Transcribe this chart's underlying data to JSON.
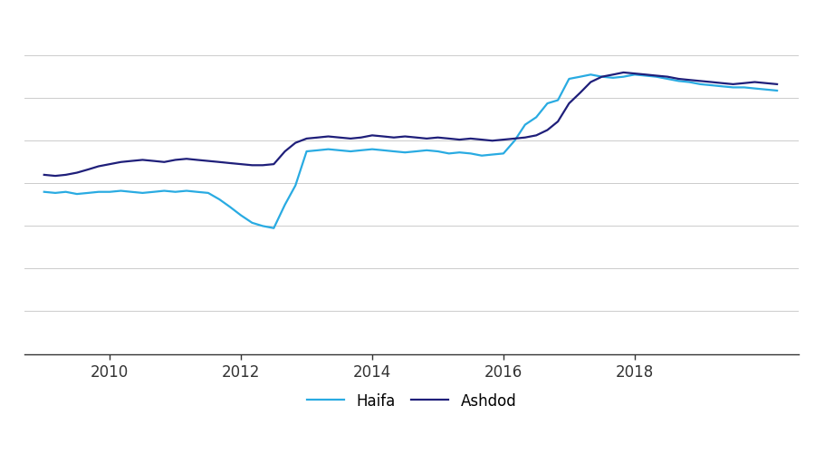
{
  "background_color": "#ffffff",
  "haifa_color": "#29ABE2",
  "ashdod_color": "#1F1F7A",
  "legend_labels": [
    "Haifa",
    "Ashdod"
  ],
  "xlim": [
    2008.7,
    2020.5
  ],
  "ylim": [
    1.2,
    4.4
  ],
  "xticks": [
    2010,
    2012,
    2014,
    2016,
    2018
  ],
  "grid_lines_y": [
    1.6,
    2.0,
    2.4,
    2.8,
    3.2,
    3.6,
    4.0
  ],
  "haifa_x": [
    2009.0,
    2009.17,
    2009.33,
    2009.5,
    2009.67,
    2009.83,
    2010.0,
    2010.17,
    2010.33,
    2010.5,
    2010.67,
    2010.83,
    2011.0,
    2011.17,
    2011.33,
    2011.5,
    2011.67,
    2011.83,
    2012.0,
    2012.17,
    2012.33,
    2012.5,
    2012.67,
    2012.83,
    2013.0,
    2013.17,
    2013.33,
    2013.5,
    2013.67,
    2013.83,
    2014.0,
    2014.17,
    2014.33,
    2014.5,
    2014.67,
    2014.83,
    2015.0,
    2015.17,
    2015.33,
    2015.5,
    2015.67,
    2015.83,
    2016.0,
    2016.17,
    2016.33,
    2016.5,
    2016.67,
    2016.83,
    2017.0,
    2017.17,
    2017.33,
    2017.5,
    2017.67,
    2017.83,
    2018.0,
    2018.17,
    2018.33,
    2018.5,
    2018.67,
    2018.83,
    2019.0,
    2019.17,
    2019.33,
    2019.5,
    2019.67,
    2019.83,
    2020.0,
    2020.17
  ],
  "haifa_y": [
    2.72,
    2.71,
    2.72,
    2.7,
    2.71,
    2.72,
    2.72,
    2.73,
    2.72,
    2.71,
    2.72,
    2.73,
    2.72,
    2.73,
    2.72,
    2.71,
    2.65,
    2.58,
    2.5,
    2.43,
    2.4,
    2.38,
    2.6,
    2.78,
    3.1,
    3.11,
    3.12,
    3.11,
    3.1,
    3.11,
    3.12,
    3.11,
    3.1,
    3.09,
    3.1,
    3.11,
    3.1,
    3.08,
    3.09,
    3.08,
    3.06,
    3.07,
    3.08,
    3.2,
    3.35,
    3.42,
    3.55,
    3.58,
    3.78,
    3.8,
    3.82,
    3.8,
    3.79,
    3.8,
    3.82,
    3.81,
    3.8,
    3.78,
    3.76,
    3.75,
    3.73,
    3.72,
    3.71,
    3.7,
    3.7,
    3.69,
    3.68,
    3.67
  ],
  "ashdod_x": [
    2009.0,
    2009.17,
    2009.33,
    2009.5,
    2009.67,
    2009.83,
    2010.0,
    2010.17,
    2010.33,
    2010.5,
    2010.67,
    2010.83,
    2011.0,
    2011.17,
    2011.33,
    2011.5,
    2011.67,
    2011.83,
    2012.0,
    2012.17,
    2012.33,
    2012.5,
    2012.67,
    2012.83,
    2013.0,
    2013.17,
    2013.33,
    2013.5,
    2013.67,
    2013.83,
    2014.0,
    2014.17,
    2014.33,
    2014.5,
    2014.67,
    2014.83,
    2015.0,
    2015.17,
    2015.33,
    2015.5,
    2015.67,
    2015.83,
    2016.0,
    2016.17,
    2016.33,
    2016.5,
    2016.67,
    2016.83,
    2017.0,
    2017.17,
    2017.33,
    2017.5,
    2017.67,
    2017.83,
    2018.0,
    2018.17,
    2018.33,
    2018.5,
    2018.67,
    2018.83,
    2019.0,
    2019.17,
    2019.33,
    2019.5,
    2019.67,
    2019.83,
    2020.0,
    2020.17
  ],
  "ashdod_y": [
    2.88,
    2.87,
    2.88,
    2.9,
    2.93,
    2.96,
    2.98,
    3.0,
    3.01,
    3.02,
    3.01,
    3.0,
    3.02,
    3.03,
    3.02,
    3.01,
    3.0,
    2.99,
    2.98,
    2.97,
    2.97,
    2.98,
    3.1,
    3.18,
    3.22,
    3.23,
    3.24,
    3.23,
    3.22,
    3.23,
    3.25,
    3.24,
    3.23,
    3.24,
    3.23,
    3.22,
    3.23,
    3.22,
    3.21,
    3.22,
    3.21,
    3.2,
    3.21,
    3.22,
    3.23,
    3.25,
    3.3,
    3.38,
    3.55,
    3.65,
    3.75,
    3.8,
    3.82,
    3.84,
    3.83,
    3.82,
    3.81,
    3.8,
    3.78,
    3.77,
    3.76,
    3.75,
    3.74,
    3.73,
    3.74,
    3.75,
    3.74,
    3.73
  ],
  "line_width": 1.6,
  "grid_color": "#cccccc",
  "grid_linewidth": 0.7,
  "tick_fontsize": 12,
  "legend_fontsize": 12
}
